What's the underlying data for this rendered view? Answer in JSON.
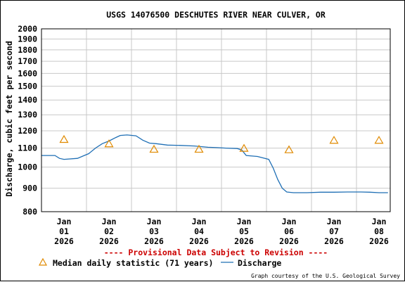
{
  "chart_data": {
    "type": "line",
    "title": "USGS 14076500 DESCHUTES RIVER NEAR CULVER, OR",
    "ylabel": "Discharge, cubic feet per second",
    "xlabel": "",
    "y_scale": "log",
    "ylim": [
      800,
      2000
    ],
    "y_ticks": [
      800,
      900,
      1000,
      1100,
      1200,
      1300,
      1400,
      1500,
      1600,
      1700,
      1800,
      1900,
      2000
    ],
    "x_range_days": [
      0.5,
      8.25
    ],
    "x_ticks": [
      {
        "day": 1,
        "month": "Jan",
        "date": "01",
        "year": "2026"
      },
      {
        "day": 2,
        "month": "Jan",
        "date": "02",
        "year": "2026"
      },
      {
        "day": 3,
        "month": "Jan",
        "date": "03",
        "year": "2026"
      },
      {
        "day": 4,
        "month": "Jan",
        "date": "04",
        "year": "2026"
      },
      {
        "day": 5,
        "month": "Jan",
        "date": "05",
        "year": "2026"
      },
      {
        "day": 6,
        "month": "Jan",
        "date": "06",
        "year": "2026"
      },
      {
        "day": 7,
        "month": "Jan",
        "date": "07",
        "year": "2026"
      },
      {
        "day": 8,
        "month": "Jan",
        "date": "08",
        "year": "2026"
      }
    ],
    "grid": true,
    "series": [
      {
        "name": "Discharge",
        "kind": "line",
        "color": "#1f6fb5",
        "x": [
          0.5,
          0.8,
          0.9,
          1.0,
          1.3,
          1.45,
          1.55,
          1.7,
          1.85,
          2.0,
          2.15,
          2.25,
          2.4,
          2.6,
          2.75,
          2.9,
          3.05,
          3.3,
          3.6,
          3.9,
          4.2,
          4.4,
          4.6,
          4.85,
          4.95,
          5.0,
          5.05,
          5.3,
          5.55,
          5.65,
          5.75,
          5.85,
          5.95,
          6.1,
          6.4,
          6.7,
          7.0,
          7.3,
          7.6,
          7.8,
          8.0,
          8.2
        ],
        "y": [
          1060,
          1060,
          1045,
          1040,
          1045,
          1060,
          1070,
          1100,
          1125,
          1140,
          1160,
          1172,
          1175,
          1170,
          1145,
          1128,
          1125,
          1117,
          1115,
          1112,
          1105,
          1103,
          1100,
          1098,
          1090,
          1075,
          1060,
          1055,
          1040,
          995,
          940,
          900,
          883,
          880,
          880,
          882,
          882,
          883,
          883,
          882,
          880,
          880
        ]
      },
      {
        "name": "Median daily statistic (71 years)",
        "kind": "marker",
        "marker": "triangle",
        "color": "#e08a00",
        "x": [
          1,
          2,
          3,
          4,
          5,
          6,
          7,
          8
        ],
        "y": [
          1150,
          1125,
          1095,
          1095,
          1100,
          1092,
          1145,
          1145
        ]
      }
    ],
    "legend": "bottom",
    "annotations": [
      "---- Provisional Data Subject to Revision ----"
    ],
    "credit": "Graph courtesy of the U.S. Geological Survey",
    "colors": {
      "provisional": "#cc0000",
      "grid": "#c8c8c8",
      "axis": "#000000"
    }
  }
}
